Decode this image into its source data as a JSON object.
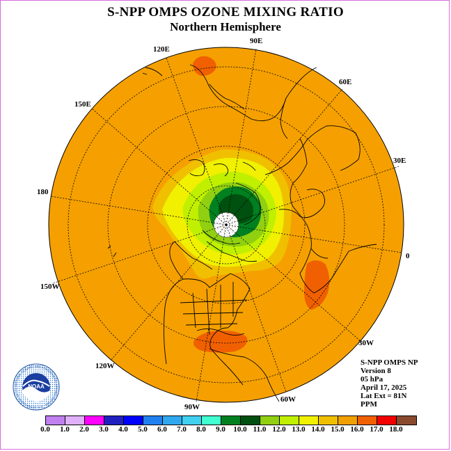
{
  "title": "S-NPP OMPS OZONE MIXING RATIO",
  "subtitle": "Northern Hemisphere",
  "longitude_labels": [
    "90E",
    "60E",
    "30E",
    "0",
    "30W",
    "60W",
    "90W",
    "120W",
    "150W",
    "180",
    "150E",
    "120E"
  ],
  "info": {
    "instrument": "S-NPP OMPS NP",
    "version": "Version 8",
    "level": "05 hPa",
    "date": "April 17, 2025",
    "lat_ext": "Lat Ext = 81N",
    "units": "PPM"
  },
  "logo": {
    "text": "NOAA",
    "ring_text": "NATIONAL OCEANIC AND ATMOSPHERIC ADMINISTRATION · U.S. DEPARTMENT OF COMMERCE"
  },
  "colorbar": {
    "colors": [
      "#c080f0",
      "#e0b0f8",
      "#ff00ff",
      "#2020c0",
      "#0000ff",
      "#2080f0",
      "#30a8f0",
      "#40d0f0",
      "#40ffd0",
      "#008020",
      "#005010",
      "#90d010",
      "#c0f000",
      "#f0f000",
      "#f0c000",
      "#f0a000",
      "#f06000",
      "#f00000",
      "#8a4a30"
    ],
    "labels": [
      "0.0",
      "1.0",
      "2.0",
      "3.0",
      "4.0",
      "5.0",
      "6.0",
      "7.0",
      "8.0",
      "9.0",
      "10.0",
      "11.0",
      "12.0",
      "13.0",
      "14.0",
      "15.0",
      "16.0",
      "17.0",
      "18.0"
    ]
  }
}
